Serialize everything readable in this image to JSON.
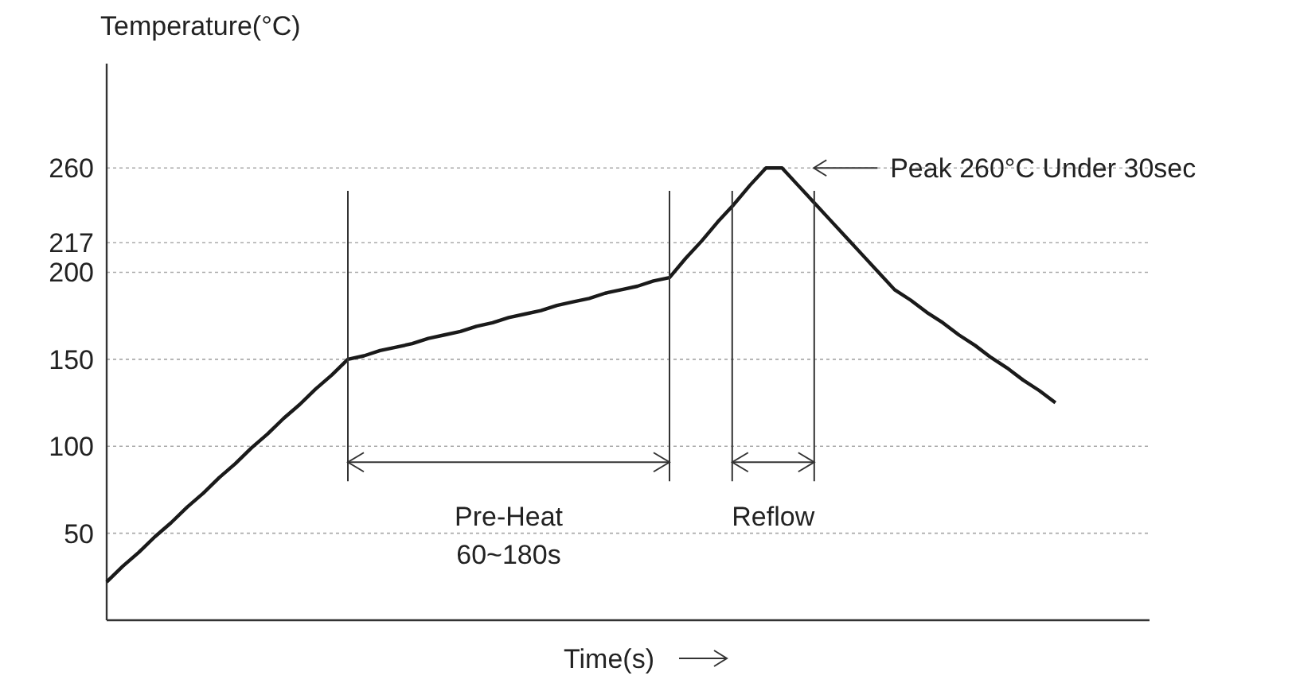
{
  "chart_data": {
    "type": "line",
    "ylabel": "Temperature(°C)",
    "xlabel": "Time(s)",
    "categories": [
      null,
      null,
      null,
      null,
      null,
      null,
      null,
      null,
      null,
      null,
      null,
      null,
      null,
      null,
      null,
      null,
      null,
      null,
      null,
      null,
      null,
      null,
      null,
      null,
      null,
      null,
      null,
      null,
      null,
      null,
      null,
      null,
      null,
      null,
      null,
      null,
      null,
      null,
      null,
      null,
      null,
      null,
      null,
      null,
      null,
      null,
      null,
      null,
      null,
      null,
      null,
      null,
      null,
      null,
      null,
      null,
      null,
      null,
      null,
      null
    ],
    "series": [
      {
        "color": "#1a1a1a",
        "values": [
          22,
          31,
          39,
          48,
          56,
          65,
          73,
          82,
          90,
          99,
          107,
          116,
          124,
          133,
          141,
          150,
          152,
          155,
          157,
          159,
          162,
          164,
          166,
          169,
          171,
          174,
          176,
          178,
          181,
          183,
          185,
          188,
          190,
          192,
          195,
          197,
          208,
          218,
          229,
          239,
          250,
          260,
          260,
          250,
          240,
          230,
          220,
          210,
          200,
          190,
          184,
          177,
          171,
          164,
          158,
          151,
          145,
          138,
          132,
          125
        ]
      }
    ],
    "ylim": [
      0,
      320
    ],
    "yticks": [
      50,
      100,
      150,
      200,
      217,
      260
    ],
    "tick_labels": "y",
    "grid": "y",
    "marker": "none",
    "line_style": "solid",
    "annotations": [
      "Pre-Heat\n60~180s",
      "Reflow",
      "Peak 260°C Under 30sec"
    ]
  }
}
